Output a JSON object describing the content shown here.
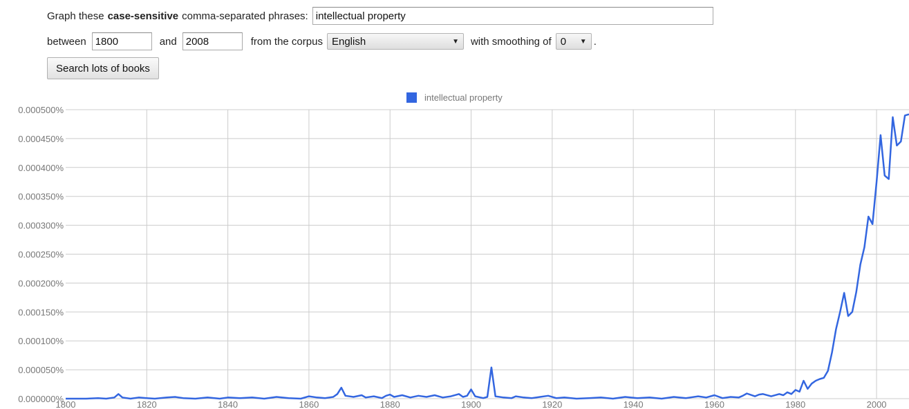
{
  "form": {
    "intro_before": "Graph these",
    "intro_bold": "case-sensitive",
    "intro_after": "comma-separated phrases:",
    "phrase_value": "intellectual property",
    "between_label": "between",
    "start_year": "1800",
    "and_label": "and",
    "end_year": "2008",
    "corpus_label": "from the corpus",
    "corpus_value": "English",
    "smoothing_label": "with smoothing of",
    "smoothing_value": "0",
    "period": ".",
    "search_label": "Search lots of books"
  },
  "colors": {
    "series": "#3366e0",
    "grid": "#cccccc"
  },
  "chart_data": {
    "type": "line",
    "legend_position": "top",
    "grid": true,
    "xlim": [
      1800,
      2008
    ],
    "ylim": [
      0,
      0.0005
    ],
    "y_ticks": [
      "0.000500%",
      "0.000450%",
      "0.000400%",
      "0.000350%",
      "0.000300%",
      "0.000250%",
      "0.000200%",
      "0.000150%",
      "0.000100%",
      "0.000050%",
      "0.000000%"
    ],
    "y_tick_values": [
      0.0005,
      0.00045,
      0.0004,
      0.00035,
      0.0003,
      0.00025,
      0.0002,
      0.00015,
      0.0001,
      5e-05,
      0
    ],
    "x_ticks": [
      "1800",
      "1820",
      "1840",
      "1860",
      "1880",
      "1900",
      "1920",
      "1940",
      "1960",
      "1980",
      "2000"
    ],
    "x_tick_values": [
      1800,
      1820,
      1840,
      1860,
      1880,
      1900,
      1920,
      1940,
      1960,
      1980,
      2000
    ],
    "series": [
      {
        "name": "intellectual property",
        "x": [
          1800,
          1805,
          1808,
          1810,
          1812,
          1813,
          1814,
          1816,
          1818,
          1820,
          1822,
          1825,
          1827,
          1829,
          1832,
          1835,
          1838,
          1840,
          1843,
          1846,
          1849,
          1852,
          1855,
          1858,
          1860,
          1862,
          1864,
          1866,
          1867,
          1868,
          1869,
          1871,
          1873,
          1874,
          1876,
          1878,
          1879,
          1880,
          1881,
          1883,
          1885,
          1887,
          1889,
          1891,
          1893,
          1895,
          1897,
          1898,
          1899,
          1900,
          1901,
          1903,
          1904,
          1905,
          1906,
          1908,
          1910,
          1911,
          1913,
          1915,
          1917,
          1919,
          1921,
          1923,
          1926,
          1929,
          1932,
          1935,
          1938,
          1941,
          1944,
          1947,
          1950,
          1953,
          1956,
          1958,
          1960,
          1962,
          1964,
          1966,
          1967,
          1968,
          1970,
          1971,
          1972,
          1974,
          1976,
          1977,
          1978,
          1979,
          1980,
          1981,
          1982,
          1983,
          1984,
          1985,
          1986,
          1987,
          1988,
          1989,
          1990,
          1991,
          1992,
          1993,
          1994,
          1995,
          1996,
          1997,
          1998,
          1999,
          2000,
          2001,
          2002,
          2003,
          2004,
          2005,
          2006,
          2007,
          2008
        ],
        "values": [
          0.0,
          0.0,
          1e-06,
          0.0,
          2e-06,
          8e-06,
          2e-06,
          0.0,
          2e-06,
          1e-06,
          0.0,
          2e-06,
          3e-06,
          1e-06,
          0.0,
          2e-06,
          0.0,
          2e-06,
          1e-06,
          2e-06,
          0.0,
          3e-06,
          1e-06,
          0.0,
          4e-06,
          2e-06,
          1e-06,
          3e-06,
          8e-06,
          1.9e-05,
          5e-06,
          3e-06,
          6e-06,
          2e-06,
          4e-06,
          1e-06,
          5e-06,
          7e-06,
          3e-06,
          6e-06,
          2e-06,
          5e-06,
          3e-06,
          6e-06,
          2e-06,
          4e-06,
          8e-06,
          3e-06,
          5e-06,
          1.6e-05,
          4e-06,
          1e-06,
          3e-06,
          5.4e-05,
          4e-06,
          2e-06,
          1e-06,
          4e-06,
          2e-06,
          1e-06,
          3e-06,
          5e-06,
          1e-06,
          2e-06,
          0.0,
          1e-06,
          2e-06,
          0.0,
          3e-06,
          1e-06,
          2e-06,
          0.0,
          3e-06,
          1e-06,
          4e-06,
          2e-06,
          6e-06,
          1e-06,
          3e-06,
          2e-06,
          5e-06,
          9e-06,
          4e-06,
          7e-06,
          8e-06,
          4e-06,
          8e-06,
          6e-06,
          1.1e-05,
          8e-06,
          1.5e-05,
          1.2e-05,
          3.1e-05,
          1.7e-05,
          2.6e-05,
          3.1e-05,
          3.4e-05,
          3.6e-05,
          4.8e-05,
          8e-05,
          0.00012,
          0.00015,
          0.000183,
          0.000143,
          0.00015,
          0.000185,
          0.000232,
          0.000262,
          0.000315,
          0.000302,
          0.000375,
          0.000456,
          0.000386,
          0.00038,
          0.000487,
          0.000438,
          0.000445,
          0.00049,
          0.000492
        ]
      }
    ]
  }
}
